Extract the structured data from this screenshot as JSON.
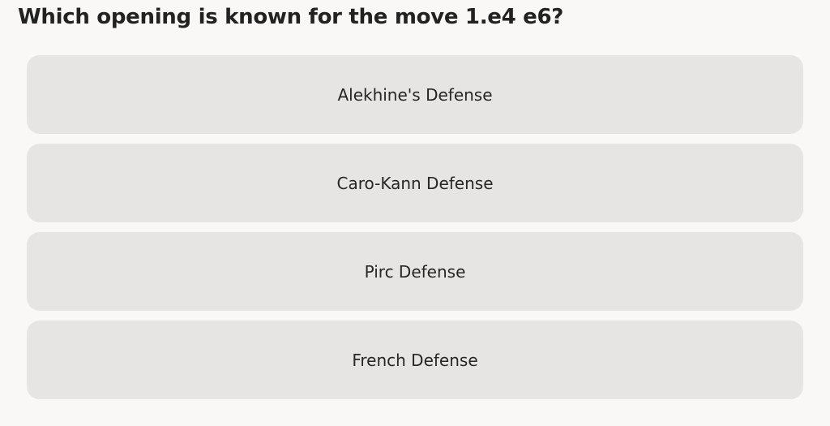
{
  "question": "Which opening is known for the move 1.e4 e6?",
  "options": [
    {
      "label": "Alekhine's Defense"
    },
    {
      "label": "Caro-Kann Defense"
    },
    {
      "label": "Pirc Defense"
    },
    {
      "label": "French Defense"
    }
  ]
}
